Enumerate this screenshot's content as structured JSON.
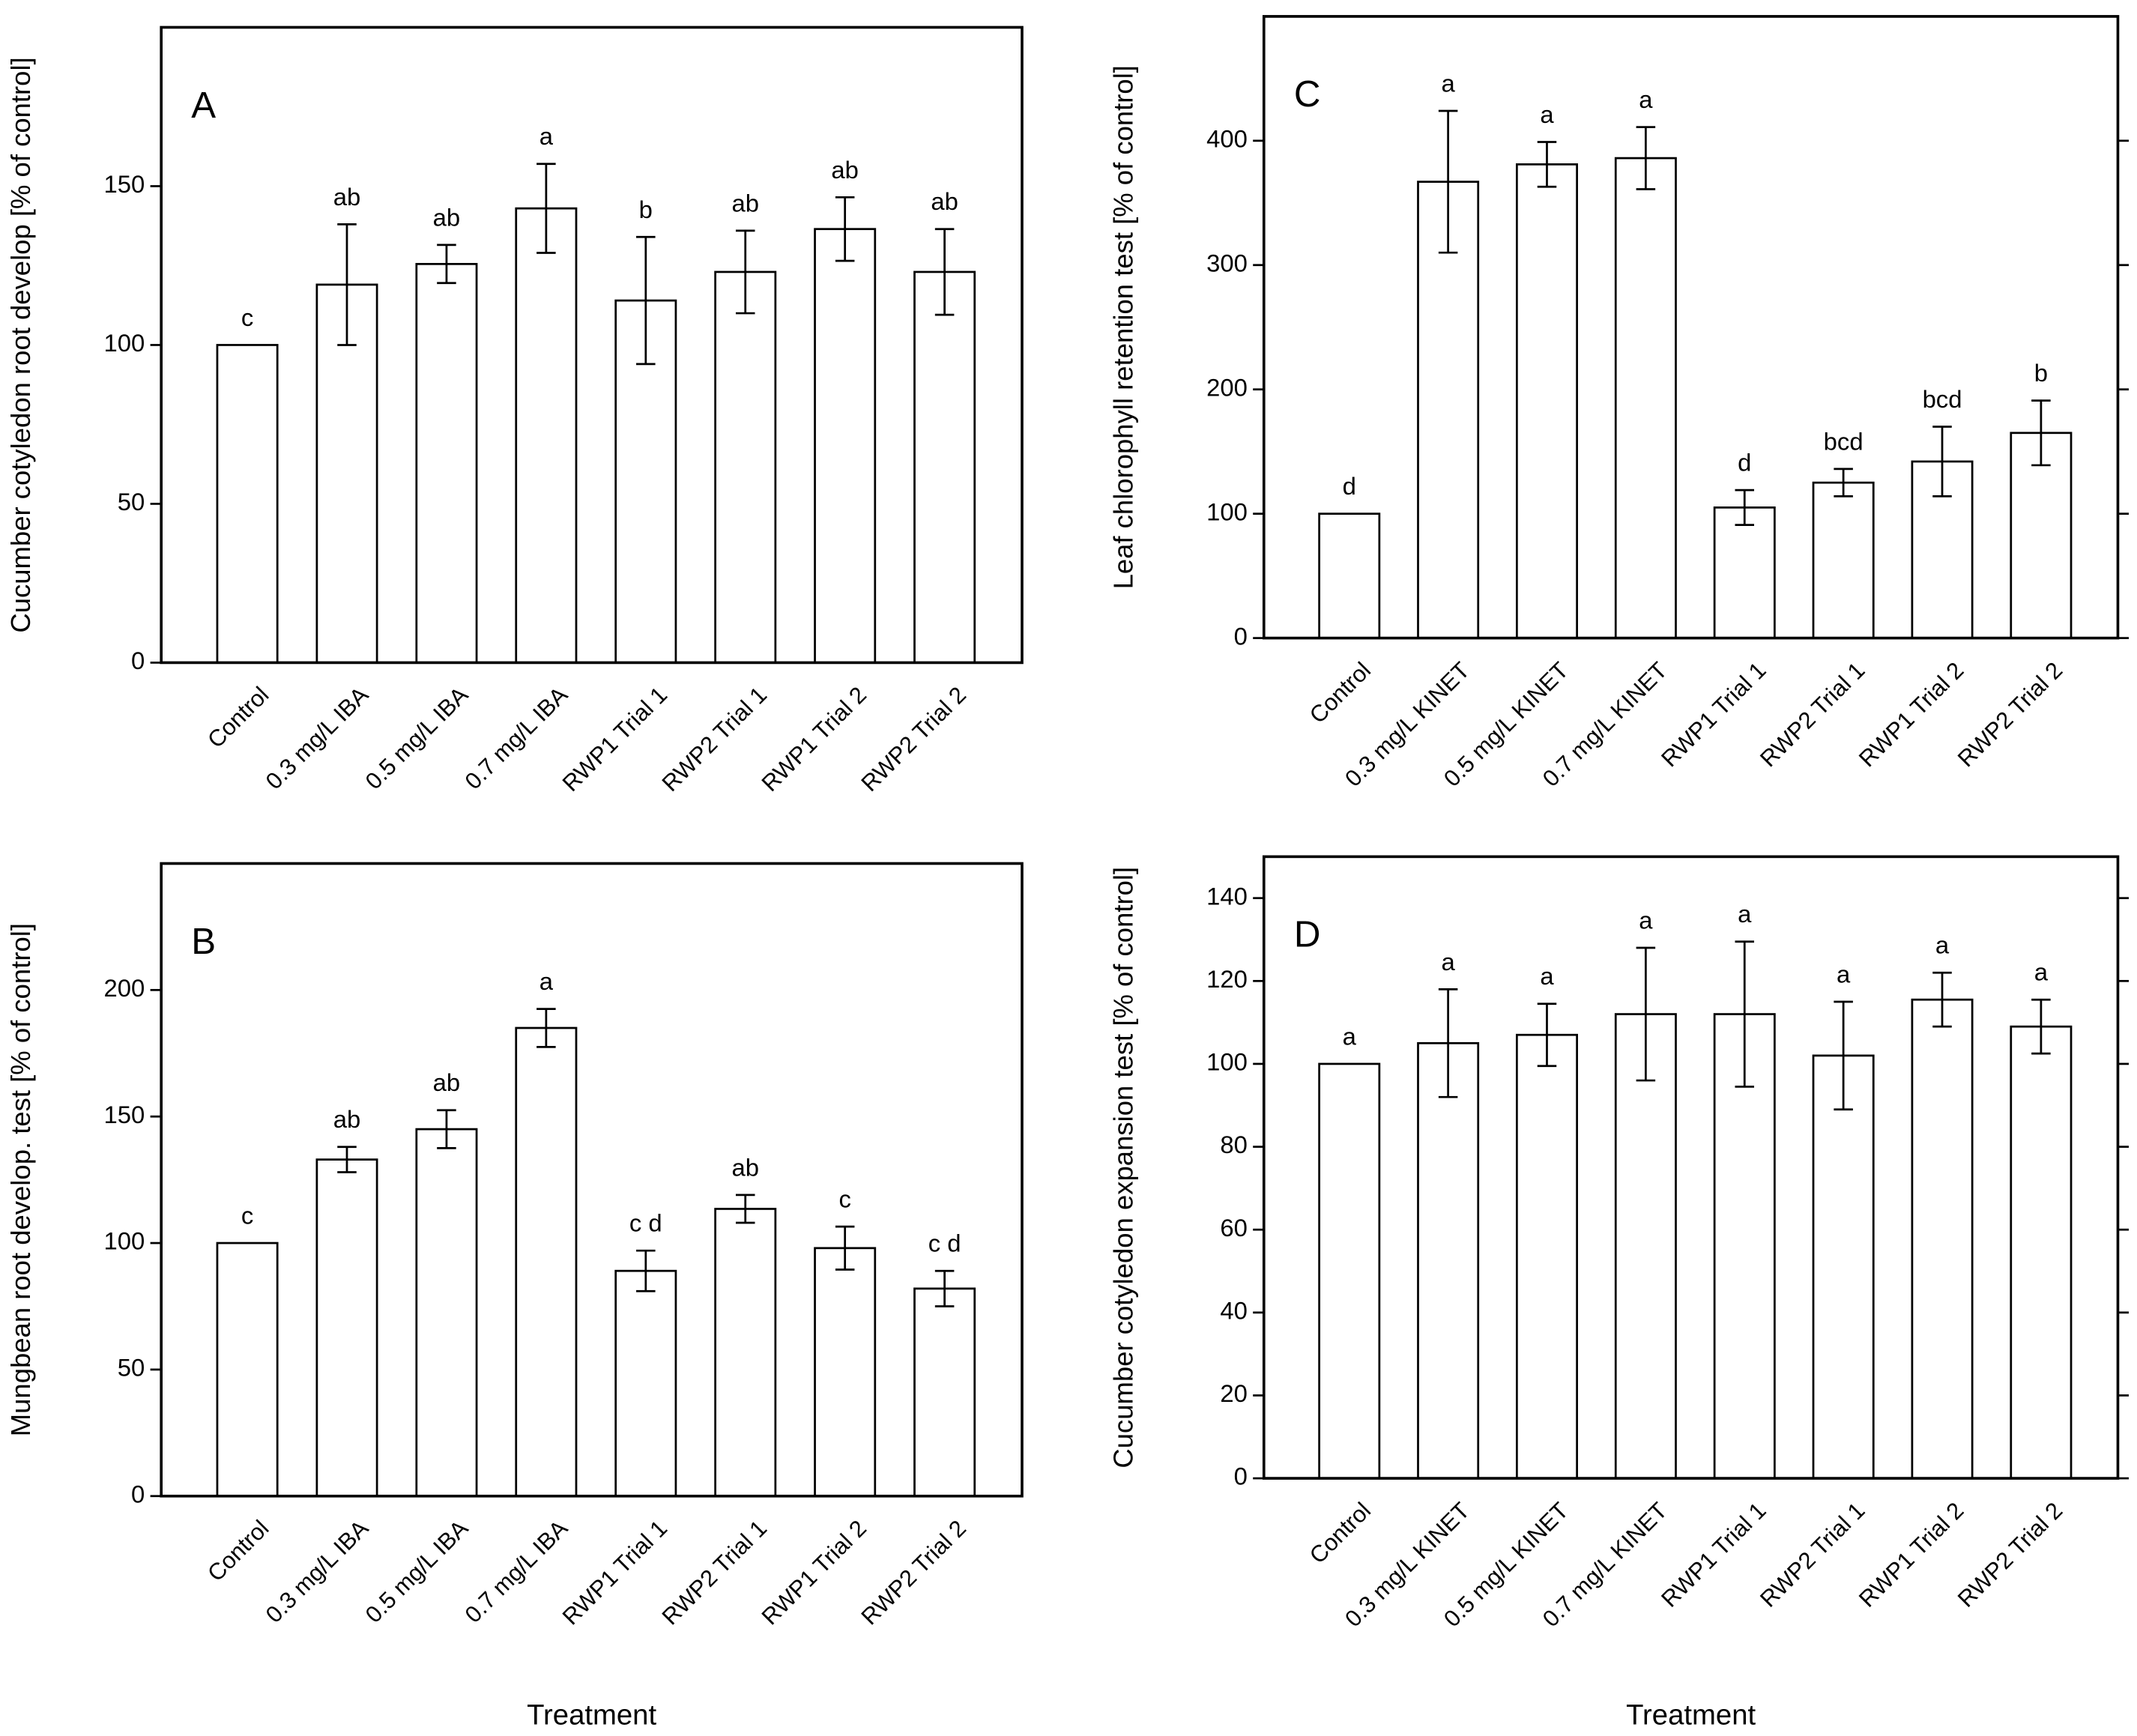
{
  "chart_data": [
    {
      "type": "bar",
      "panel_label": "A",
      "y_label": "Cucumber cotyledon root develop [% of control]",
      "categories": [
        "Control",
        "0.3 mg/L IBA",
        "0.5 mg/L  IBA",
        "0.7 mg/L  IBA",
        "RWP1 Trial 1",
        "RWP2  Trial 1",
        "RWP1 Trial 2",
        "RWP2 Trial 2"
      ],
      "values": [
        100,
        119,
        125.5,
        143,
        114,
        123,
        136.5,
        123
      ],
      "errors": [
        0,
        19,
        6,
        14,
        20,
        13,
        10,
        13.5
      ],
      "letters": [
        "c",
        "ab",
        "ab",
        "a",
        "b",
        "ab",
        "ab",
        "ab"
      ],
      "color": "#ffffff",
      "ylim": [
        0,
        200
      ],
      "yticks": [
        0,
        50,
        100,
        150
      ],
      "mirror_ticks": false
    },
    {
      "type": "bar",
      "panel_label": "B",
      "y_label": "Mungbean root develop. test [% of control]",
      "x_label": "Treatment",
      "categories": [
        "Control",
        "0.3 mg/L IBA",
        "0.5 mg/L  IBA",
        "0.7 mg/L  IBA",
        "RWP1 Trial 1",
        "RWP2  Trial 1",
        "RWP1 Trial 2",
        "RWP2 Trial 2"
      ],
      "values": [
        100,
        133,
        145,
        185,
        89,
        113.5,
        98,
        82
      ],
      "errors": [
        0,
        5,
        7.5,
        7.5,
        8,
        5.5,
        8.5,
        7
      ],
      "letters": [
        "c",
        "ab",
        "ab",
        "a",
        "c d",
        "ab",
        "c",
        "c d"
      ],
      "color": "#ffffff",
      "ylim": [
        0,
        250
      ],
      "yticks": [
        0,
        50,
        100,
        150,
        200
      ],
      "mirror_ticks": false
    },
    {
      "type": "bar",
      "panel_label": "C",
      "y_label": "Leaf chlorophyll retention test  [% of control]",
      "categories": [
        "Control",
        "0.3 mg/L KINET",
        "0.5 mg/L KINET",
        "0.7 mg/L KINET",
        "RWP1 Trial 1",
        "RWP2  Trial 1",
        "RWP1 Trial 2",
        "RWP2 Trial 2"
      ],
      "values": [
        100,
        367,
        381,
        386,
        105,
        125,
        142,
        165
      ],
      "errors": [
        0,
        57,
        18,
        25,
        14,
        11,
        28,
        26
      ],
      "letters": [
        "d",
        "a",
        "a",
        "a",
        "d",
        "bcd",
        "bcd",
        "b"
      ],
      "color": "#ffffff",
      "ylim": [
        0,
        500
      ],
      "yticks": [
        0,
        100,
        200,
        300,
        400
      ],
      "mirror_ticks": true
    },
    {
      "type": "bar",
      "panel_label": "D",
      "y_label": "Cucumber cotyledon expansion test [% of control]",
      "x_label": "Treatment",
      "categories": [
        "Control",
        "0.3 mg/L KINET",
        "0.5 mg/L KINET",
        "0.7 mg/L KINET",
        "RWP1 Trial 1",
        "RWP2  Trial 1",
        "RWP1 Trial 2",
        "RWP2 Trial 2"
      ],
      "values": [
        100,
        105,
        107,
        112,
        112,
        102,
        115.5,
        109
      ],
      "errors": [
        0,
        13,
        7.5,
        16,
        17.5,
        13,
        6.5,
        6.5
      ],
      "letters": [
        "a",
        "a",
        "a",
        "a",
        "a",
        "a",
        "a",
        "a"
      ],
      "color": "#ffffff",
      "ylim": [
        0,
        150
      ],
      "yticks": [
        0,
        20,
        40,
        60,
        80,
        100,
        120,
        140
      ],
      "mirror_ticks": true
    }
  ]
}
